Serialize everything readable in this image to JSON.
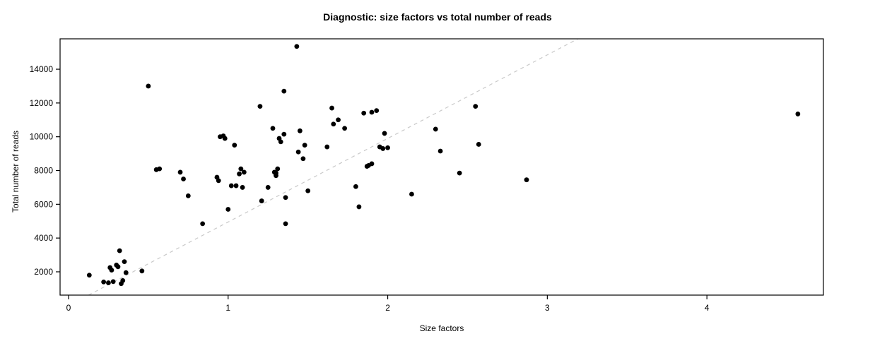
{
  "chart_data": {
    "type": "scatter",
    "title": "Diagnostic: size factors vs total number of reads",
    "xlabel": "Size factors",
    "ylabel": "Total number of reads",
    "xlim": [
      -0.053,
      4.73
    ],
    "ylim": [
      620,
      15800
    ],
    "x_ticks": [
      0,
      1,
      2,
      3,
      4
    ],
    "y_ticks": [
      2000,
      4000,
      6000,
      8000,
      10000,
      12000,
      14000
    ],
    "grid": false,
    "legend": "none",
    "point_color": "#000000",
    "frame_color": "#000000",
    "reference_line": {
      "kind": "abline",
      "intercept": 0,
      "slope": 4950,
      "style": "dashed",
      "color": "#c9c9c9"
    },
    "points": [
      [
        0.13,
        1800
      ],
      [
        0.22,
        1400
      ],
      [
        0.25,
        1350
      ],
      [
        0.26,
        2250
      ],
      [
        0.27,
        2100
      ],
      [
        0.28,
        1420
      ],
      [
        0.3,
        2400
      ],
      [
        0.31,
        2300
      ],
      [
        0.32,
        3250
      ],
      [
        0.33,
        1300
      ],
      [
        0.34,
        1480
      ],
      [
        0.35,
        2600
      ],
      [
        0.36,
        1950
      ],
      [
        0.46,
        2050
      ],
      [
        0.5,
        13000
      ],
      [
        0.55,
        8050
      ],
      [
        0.57,
        8100
      ],
      [
        0.7,
        7900
      ],
      [
        0.72,
        7500
      ],
      [
        0.75,
        6500
      ],
      [
        0.84,
        4850
      ],
      [
        0.93,
        7600
      ],
      [
        0.94,
        7400
      ],
      [
        0.95,
        10000
      ],
      [
        0.97,
        10050
      ],
      [
        0.98,
        9900
      ],
      [
        1.0,
        5700
      ],
      [
        1.02,
        7100
      ],
      [
        1.04,
        9500
      ],
      [
        1.05,
        7100
      ],
      [
        1.07,
        7800
      ],
      [
        1.08,
        8100
      ],
      [
        1.09,
        7000
      ],
      [
        1.1,
        7900
      ],
      [
        1.2,
        11800
      ],
      [
        1.21,
        6200
      ],
      [
        1.25,
        7000
      ],
      [
        1.28,
        10500
      ],
      [
        1.29,
        7900
      ],
      [
        1.3,
        7850
      ],
      [
        1.3,
        7700
      ],
      [
        1.31,
        8100
      ],
      [
        1.32,
        9900
      ],
      [
        1.33,
        9700
      ],
      [
        1.35,
        12700
      ],
      [
        1.35,
        10150
      ],
      [
        1.36,
        6400
      ],
      [
        1.36,
        4850
      ],
      [
        1.43,
        15350
      ],
      [
        1.44,
        9100
      ],
      [
        1.45,
        10350
      ],
      [
        1.47,
        8700
      ],
      [
        1.48,
        9500
      ],
      [
        1.5,
        6800
      ],
      [
        1.62,
        9400
      ],
      [
        1.65,
        11700
      ],
      [
        1.66,
        10750
      ],
      [
        1.69,
        11000
      ],
      [
        1.73,
        10500
      ],
      [
        1.8,
        7050
      ],
      [
        1.82,
        5850
      ],
      [
        1.85,
        11400
      ],
      [
        1.87,
        8250
      ],
      [
        1.88,
        8300
      ],
      [
        1.9,
        8400
      ],
      [
        1.9,
        11450
      ],
      [
        1.93,
        11550
      ],
      [
        1.95,
        9400
      ],
      [
        1.97,
        9300
      ],
      [
        1.98,
        10200
      ],
      [
        2.0,
        9350
      ],
      [
        2.15,
        6600
      ],
      [
        2.3,
        10450
      ],
      [
        2.33,
        9150
      ],
      [
        2.45,
        7850
      ],
      [
        2.55,
        11800
      ],
      [
        2.57,
        9550
      ],
      [
        2.87,
        7450
      ],
      [
        4.57,
        11350
      ]
    ]
  }
}
